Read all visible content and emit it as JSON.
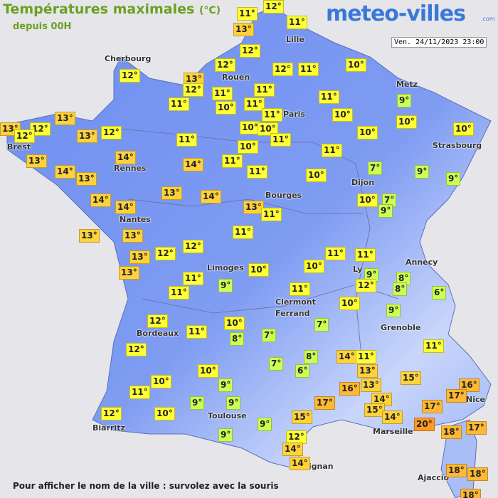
{
  "header": {
    "title": "Températures maximales",
    "unit": "(°C)",
    "subtitle": "depuis 00H",
    "logo": "meteo-villes",
    "logo_suffix": ".com",
    "date": "Ven. 24/11/2023 23:00"
  },
  "cities": [
    "Cherbourg",
    "Rouen",
    "Lille",
    "Paris",
    "Metz",
    "Strasbourg",
    "Brest",
    "Rennes",
    "Dijon",
    "Bourges",
    "Nantes",
    "Limoges",
    "Ly",
    "Annecy",
    "Clermont",
    "Ferrand",
    "Grenoble",
    "Bordeaux",
    "Nice",
    "Toulouse",
    "Biarritz",
    "Marseille",
    "pignan",
    "Ajaccio"
  ],
  "temperatures": [
    "12°",
    "11°",
    "11°",
    "13°",
    "12°",
    "12°",
    "12°",
    "11°",
    "10°",
    "12°",
    "13°",
    "12°",
    "11°",
    "11°",
    "11°",
    "10°",
    "11°",
    "11°",
    "9°",
    "11°",
    "10°",
    "13°",
    "13°",
    "12°",
    "12°",
    "13°",
    "12°",
    "10°",
    "10°",
    "10°",
    "10°",
    "10°",
    "11°",
    "11°",
    "13°",
    "14°",
    "10°",
    "11°",
    "14°",
    "13°",
    "14°",
    "11°",
    "11°",
    "7°",
    "9°",
    "10°",
    "9°",
    "14°",
    "13°",
    "14°",
    "10°",
    "7°",
    "13°",
    "11°",
    "9°",
    "14°",
    "13°",
    "13°",
    "11°",
    "12°",
    "11°",
    "11°",
    "13°",
    "12°",
    "13°",
    "10°",
    "10°",
    "9°",
    "8°",
    "11°",
    "8°",
    "11°",
    "9°",
    "11°",
    "12°",
    "6°",
    "10°",
    "9°",
    "12°",
    "7°",
    "10°",
    "11°",
    "7°",
    "8°",
    "12°",
    "11°",
    "8°",
    "14°",
    "11°",
    "7°",
    "6°",
    "10°",
    "13°",
    "15°",
    "10°",
    "16°",
    "9°",
    "16°",
    "13°",
    "11°",
    "17°",
    "9°",
    "9°",
    "14°",
    "17°",
    "17°",
    "15°",
    "14°",
    "12°",
    "10°",
    "9°",
    "15°",
    "20°",
    "18°",
    "17°",
    "9°",
    "12°",
    "14°",
    "14°",
    "18°",
    "18°",
    "18°"
  ],
  "footer": "Pour afficher le nom de la ville : survolez avec la souris"
}
